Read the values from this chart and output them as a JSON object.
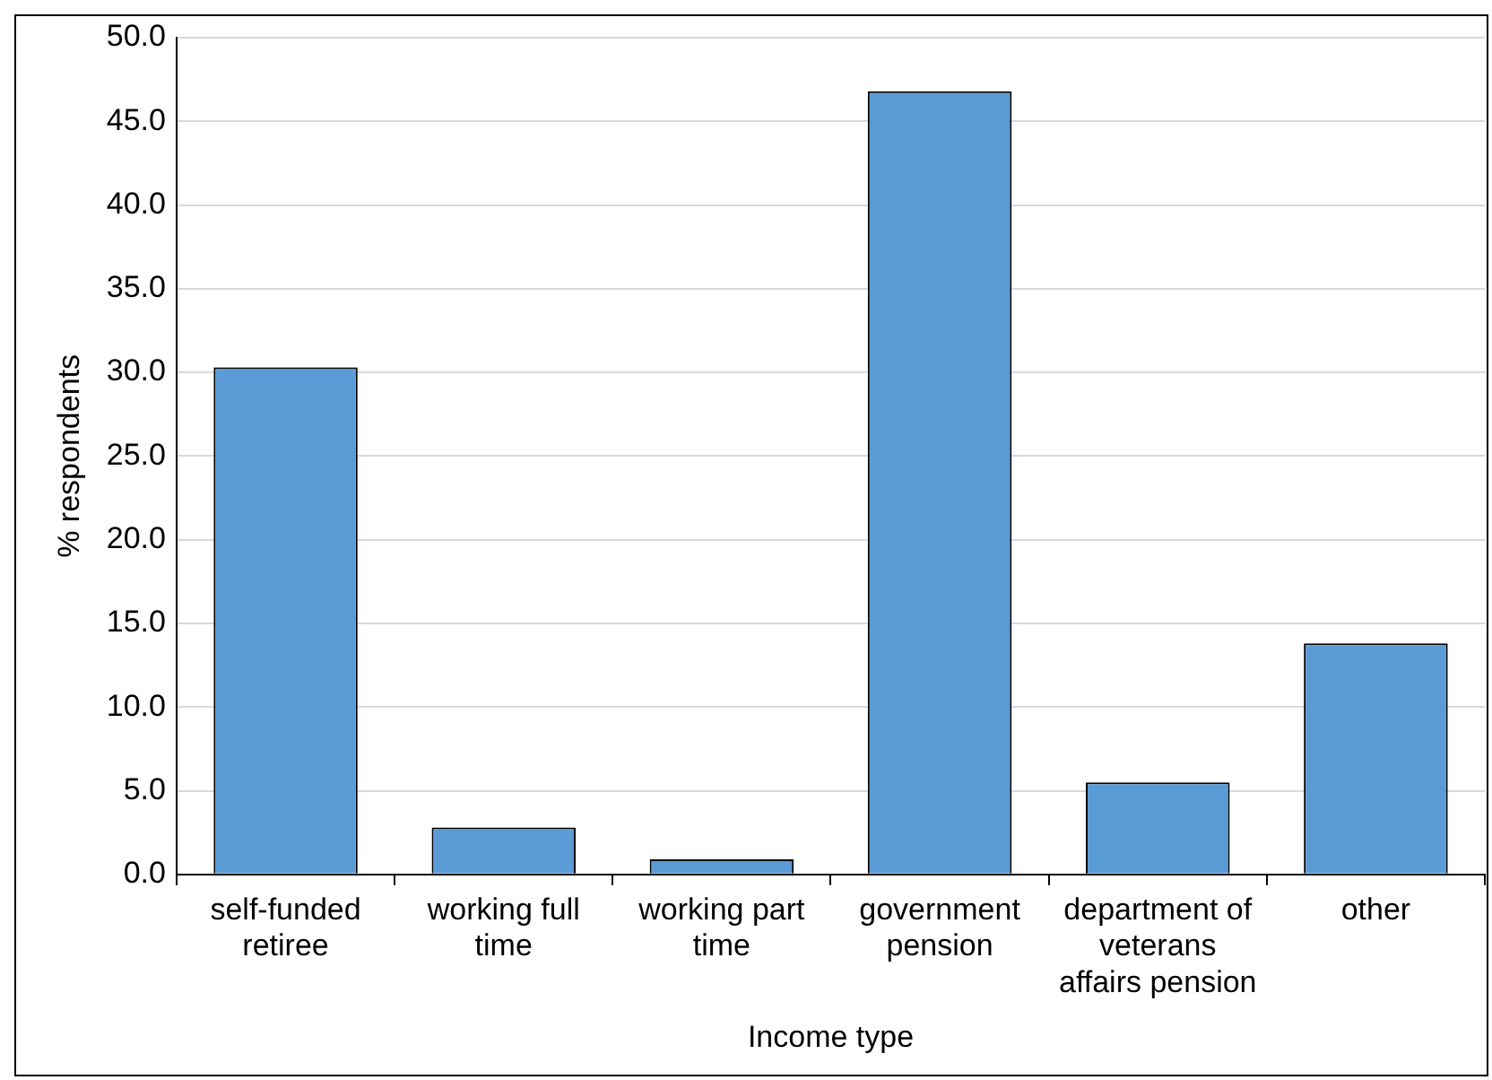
{
  "chart_data": {
    "type": "bar",
    "xlabel": "Income type",
    "ylabel": "% respondents",
    "categories": [
      "self-funded retiree",
      "working full time",
      "working part time",
      "government pension",
      "department of veterans affairs pension",
      "other"
    ],
    "values": [
      30.3,
      2.8,
      0.9,
      46.8,
      5.5,
      13.8
    ],
    "color": "#5b9bd5",
    "ylim": [
      0,
      50
    ],
    "yticks": [
      {
        "value": 0,
        "label": "0.0"
      },
      {
        "value": 5,
        "label": "5.0"
      },
      {
        "value": 10,
        "label": "10.0"
      },
      {
        "value": 15,
        "label": "15.0"
      },
      {
        "value": 20,
        "label": "20.0"
      },
      {
        "value": 25,
        "label": "25.0"
      },
      {
        "value": 30,
        "label": "30.0"
      },
      {
        "value": 35,
        "label": "35.0"
      },
      {
        "value": 40,
        "label": "40.0"
      },
      {
        "value": 45,
        "label": "45.0"
      },
      {
        "value": 50,
        "label": "50.0"
      }
    ],
    "grid": "y",
    "legend": false
  }
}
